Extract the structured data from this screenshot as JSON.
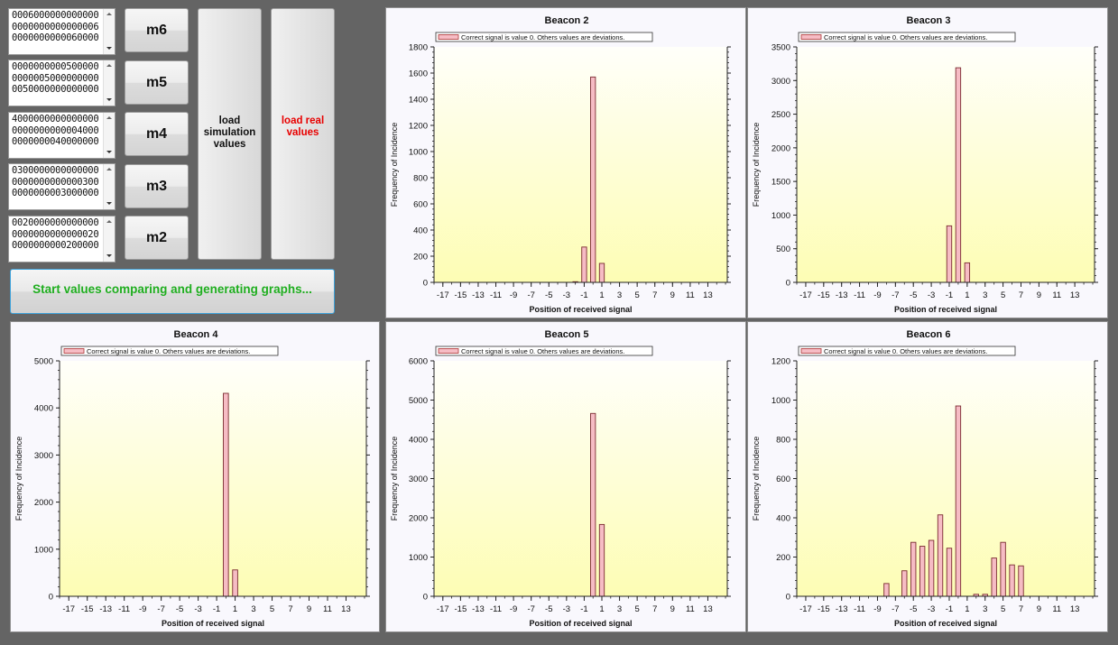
{
  "textboxes": [
    {
      "lines": [
        "0006000000000000",
        "0000000000000006",
        "0000000000060000"
      ]
    },
    {
      "lines": [
        "0000000000500000",
        "0000005000000000",
        "0050000000000000"
      ]
    },
    {
      "lines": [
        "4000000000000000",
        "0000000000004000",
        "0000000040000000"
      ]
    },
    {
      "lines": [
        "0300000000000000",
        "0000000000000300",
        "0000000003000000"
      ]
    },
    {
      "lines": [
        "0020000000000000",
        "0000000000000020",
        "0000000000200000"
      ]
    }
  ],
  "m_buttons": [
    "m6",
    "m5",
    "m4",
    "m3",
    "m2"
  ],
  "load_simulation": {
    "line1": "load",
    "line2": "simulation",
    "line3": "values"
  },
  "load_real": {
    "line1": "load real",
    "line2": "values"
  },
  "start_button": "Start values comparing and generating graphs...",
  "colors": {
    "bar": "#f6bcc4",
    "start_text": "#1fae1f",
    "load_real_text": "#e80000",
    "plot_top": "#fffffa",
    "plot_bottom": "#fdfdb4"
  },
  "chart_data": [
    {
      "type": "bar",
      "title": "Beacon 2",
      "xlabel": "Position of received signal",
      "ylabel": "Frequency of Incidence",
      "legend": "Correct signal is value 0. Others values are deviations.",
      "ylim": [
        0,
        1800
      ],
      "yticks": [
        0,
        200,
        400,
        600,
        800,
        1000,
        1200,
        1400,
        1600,
        1800
      ],
      "xticks": [
        -17,
        -15,
        -13,
        -11,
        -9,
        -7,
        -5,
        -3,
        -1,
        1,
        3,
        5,
        7,
        9,
        11,
        13
      ],
      "x": [
        -2,
        -1,
        0,
        1
      ],
      "values": [
        5,
        270,
        1570,
        145
      ]
    },
    {
      "type": "bar",
      "title": "Beacon 3",
      "xlabel": "Position of received signal",
      "ylabel": "Frequency of Incidence",
      "legend": "Correct signal is value 0. Others values are deviations.",
      "ylim": [
        0,
        3500
      ],
      "yticks": [
        0,
        500,
        1000,
        1500,
        2000,
        2500,
        3000,
        3500
      ],
      "xticks": [
        -17,
        -15,
        -13,
        -11,
        -9,
        -7,
        -5,
        -3,
        -1,
        1,
        3,
        5,
        7,
        9,
        11,
        13
      ],
      "x": [
        -1,
        0,
        1
      ],
      "values": [
        840,
        3190,
        290
      ]
    },
    {
      "type": "bar",
      "title": "Beacon 4",
      "xlabel": "Position of received signal",
      "ylabel": "Frequency of Incidence",
      "legend": "Correct signal is value 0. Others values are deviations.",
      "ylim": [
        0,
        5000
      ],
      "yticks": [
        0,
        1000,
        2000,
        3000,
        4000,
        5000
      ],
      "xticks": [
        -17,
        -15,
        -13,
        -11,
        -9,
        -7,
        -5,
        -3,
        -1,
        1,
        3,
        5,
        7,
        9,
        11,
        13
      ],
      "x": [
        0,
        1
      ],
      "values": [
        4310,
        560
      ]
    },
    {
      "type": "bar",
      "title": "Beacon 5",
      "xlabel": "Position of received signal",
      "ylabel": "Frequency of Incidence",
      "legend": "Correct signal is value 0. Others values are deviations.",
      "ylim": [
        0,
        6000
      ],
      "yticks": [
        0,
        1000,
        2000,
        3000,
        4000,
        5000,
        6000
      ],
      "xticks": [
        -17,
        -15,
        -13,
        -11,
        -9,
        -7,
        -5,
        -3,
        -1,
        1,
        3,
        5,
        7,
        9,
        11,
        13
      ],
      "x": [
        0,
        1
      ],
      "values": [
        4660,
        1830
      ]
    },
    {
      "type": "bar",
      "title": "Beacon 6",
      "xlabel": "Position of received signal",
      "ylabel": "Frequency of Incidence",
      "legend": "Correct signal is value 0. Others values are deviations.",
      "ylim": [
        0,
        1200
      ],
      "yticks": [
        0,
        200,
        400,
        600,
        800,
        1000,
        1200
      ],
      "xticks": [
        -17,
        -15,
        -13,
        -11,
        -9,
        -7,
        -5,
        -3,
        -1,
        1,
        3,
        5,
        7,
        9,
        11,
        13
      ],
      "x": [
        -8,
        -6,
        -5,
        -4,
        -3,
        -2,
        -1,
        0,
        2,
        3,
        4,
        5,
        6,
        7
      ],
      "values": [
        65,
        130,
        275,
        255,
        285,
        415,
        245,
        970,
        10,
        10,
        195,
        275,
        160,
        155
      ]
    }
  ]
}
